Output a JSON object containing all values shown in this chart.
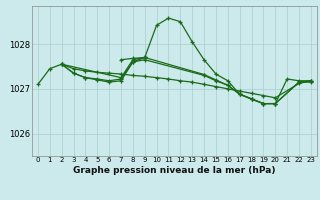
{
  "title": "Graphe pression niveau de la mer (hPa)",
  "bg_color": "#cce9eb",
  "grid_color": "#aacccc",
  "line_color": "#1a6b1a",
  "ylim": [
    1025.5,
    1028.85
  ],
  "yticks": [
    1026,
    1027,
    1028
  ],
  "xlim": [
    -0.5,
    23.5
  ],
  "xticks": [
    0,
    1,
    2,
    3,
    4,
    5,
    6,
    7,
    8,
    9,
    10,
    11,
    12,
    13,
    14,
    15,
    16,
    17,
    18,
    19,
    20,
    21,
    22,
    23
  ],
  "series": [
    {
      "x": [
        0,
        1,
        2,
        3,
        4,
        5,
        6,
        7,
        8,
        9,
        10,
        11,
        12,
        13,
        14,
        15,
        16,
        17,
        18,
        19,
        20,
        21,
        22,
        23
      ],
      "y": [
        1027.1,
        1027.45,
        1027.55,
        1027.35,
        1027.25,
        1027.22,
        1027.18,
        1027.22,
        1027.6,
        1027.7,
        1028.42,
        1028.58,
        1028.5,
        1028.05,
        1027.65,
        1027.33,
        1027.18,
        1026.88,
        1026.77,
        1026.67,
        1026.67,
        1027.22,
        1027.18,
        1027.18
      ],
      "style": "-",
      "marker": "+"
    },
    {
      "x": [
        2,
        3,
        4,
        5,
        6,
        7,
        8,
        9,
        10,
        11,
        12,
        13,
        14,
        15,
        16,
        17,
        18,
        19,
        20,
        22,
        23
      ],
      "y": [
        1027.55,
        1027.45,
        1027.4,
        1027.37,
        1027.35,
        1027.33,
        1027.3,
        1027.28,
        1027.25,
        1027.22,
        1027.18,
        1027.15,
        1027.1,
        1027.05,
        1027.0,
        1026.95,
        1026.9,
        1026.85,
        1026.8,
        1027.12,
        1027.18
      ],
      "style": "-",
      "marker": "+"
    },
    {
      "x": [
        2,
        3,
        4,
        5,
        6,
        7,
        8,
        9,
        14,
        15,
        16,
        17,
        18,
        19,
        20,
        22,
        23
      ],
      "y": [
        1027.55,
        1027.35,
        1027.25,
        1027.2,
        1027.15,
        1027.18,
        1027.6,
        1027.65,
        1027.3,
        1027.18,
        1027.08,
        1026.88,
        1026.78,
        1026.67,
        1026.67,
        1027.15,
        1027.15
      ],
      "style": "-",
      "marker": "+"
    },
    {
      "x": [
        2,
        7,
        8,
        9,
        14,
        15,
        16,
        17,
        18,
        19,
        20,
        22,
        23
      ],
      "y": [
        1027.55,
        1027.25,
        1027.65,
        1027.7,
        1027.32,
        1027.2,
        1027.08,
        1026.88,
        1026.77,
        1026.67,
        1026.67,
        1027.15,
        1027.18
      ],
      "style": "-",
      "marker": "+"
    },
    {
      "x": [
        7,
        8,
        9
      ],
      "y": [
        1027.65,
        1027.68,
        1027.7
      ],
      "style": "-",
      "marker": "+"
    }
  ]
}
